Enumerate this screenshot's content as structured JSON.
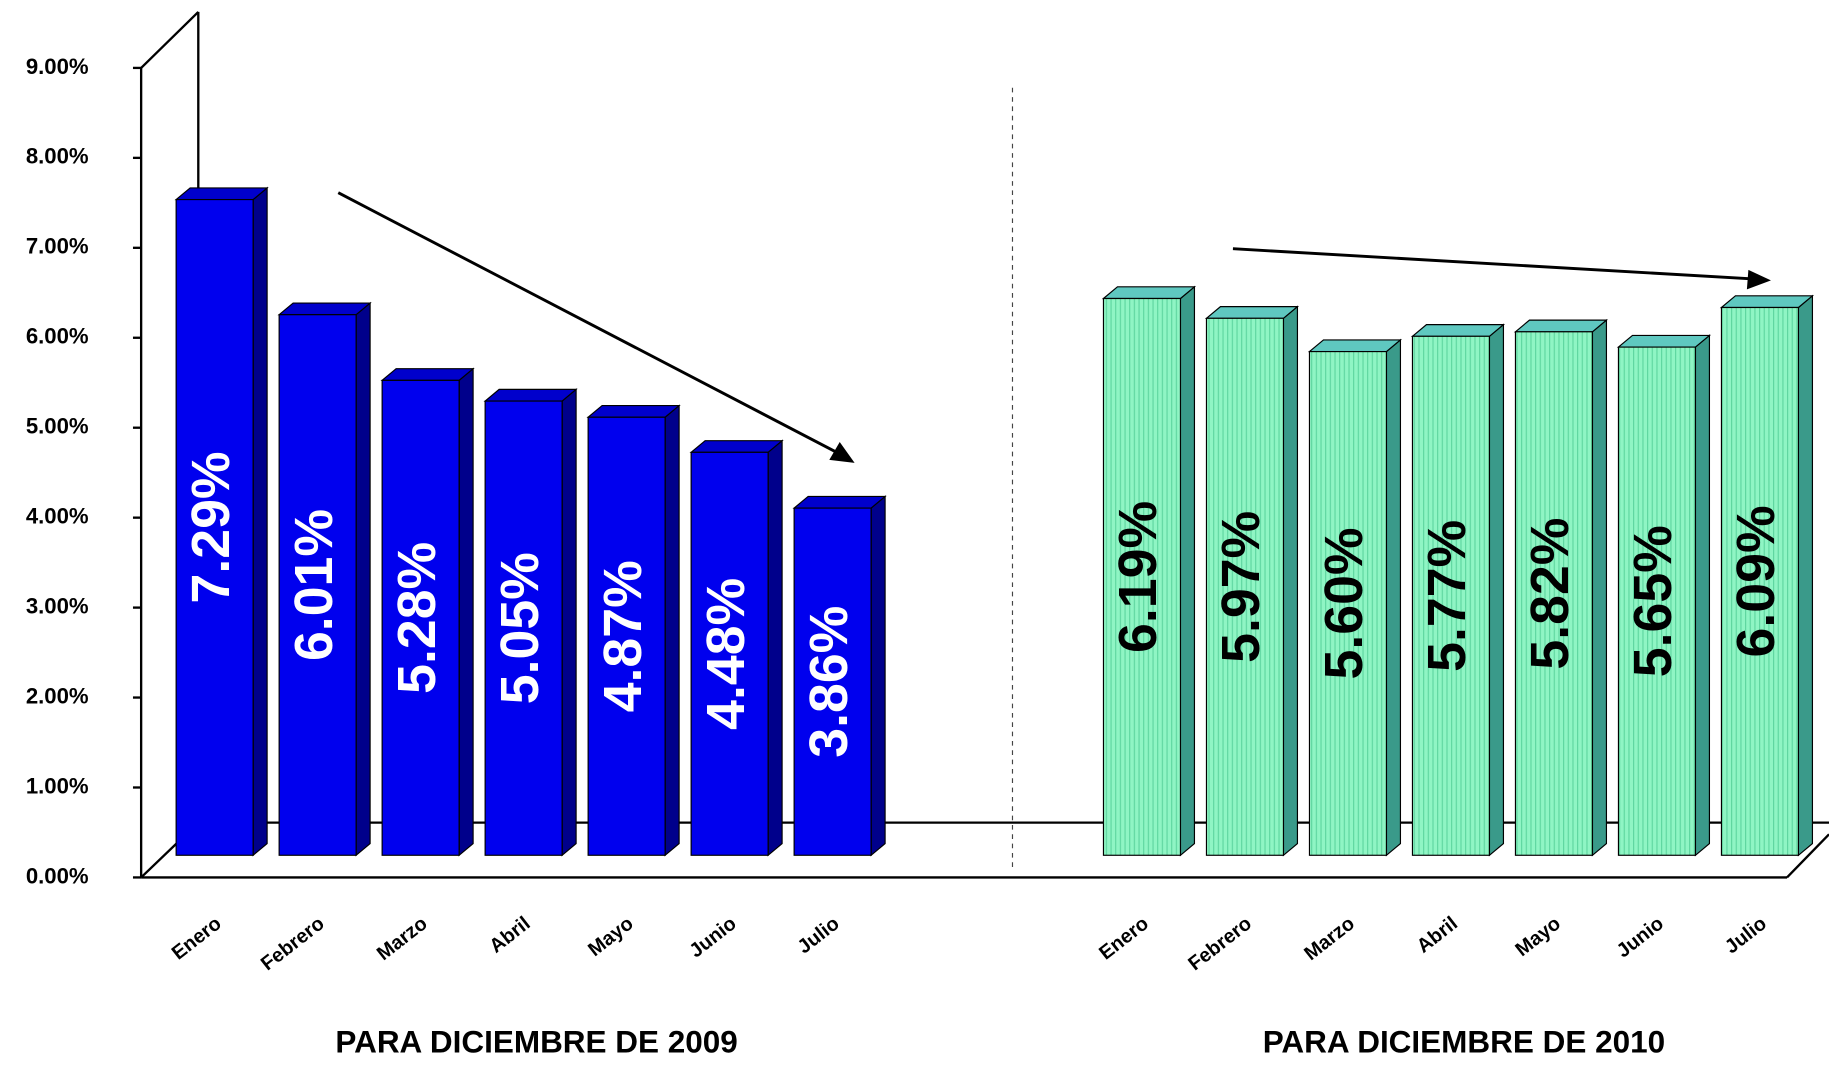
{
  "chart_data": {
    "type": "bar3d",
    "categories": [
      "Enero",
      "Febrero",
      "Marzo",
      "Abril",
      "Mayo",
      "Junio",
      "Julio"
    ],
    "series": [
      {
        "name": "PARA  DICIEMBRE DE 2009",
        "color": "#0000ee",
        "values": [
          7.29,
          6.01,
          5.28,
          5.05,
          4.87,
          4.48,
          3.86
        ],
        "value_labels": [
          "7.29%",
          "6.01%",
          "5.28%",
          "5.05%",
          "4.87%",
          "4.48%",
          "3.86%"
        ]
      },
      {
        "name": "PARA  DICIEMBRE DE 2010",
        "color": "#7ff0b8",
        "values": [
          6.19,
          5.97,
          5.6,
          5.77,
          5.82,
          5.65,
          6.09
        ],
        "value_labels": [
          "6.19%",
          "5.97%",
          "5.60%",
          "5.77%",
          "5.82%",
          "5.65%",
          "6.09%"
        ]
      }
    ],
    "ylim": [
      0,
      9
    ],
    "yticks": [
      {
        "value": 0,
        "label": "0.00%"
      },
      {
        "value": 1,
        "label": "1.00%"
      },
      {
        "value": 2,
        "label": "2.00%"
      },
      {
        "value": 3,
        "label": "3.00%"
      },
      {
        "value": 4,
        "label": "4.00%"
      },
      {
        "value": 5,
        "label": "5.00%"
      },
      {
        "value": 6,
        "label": "6.00%"
      },
      {
        "value": 7,
        "label": "7.00%"
      },
      {
        "value": 8,
        "label": "8.00%"
      },
      {
        "value": 9,
        "label": "9.00%"
      }
    ]
  }
}
